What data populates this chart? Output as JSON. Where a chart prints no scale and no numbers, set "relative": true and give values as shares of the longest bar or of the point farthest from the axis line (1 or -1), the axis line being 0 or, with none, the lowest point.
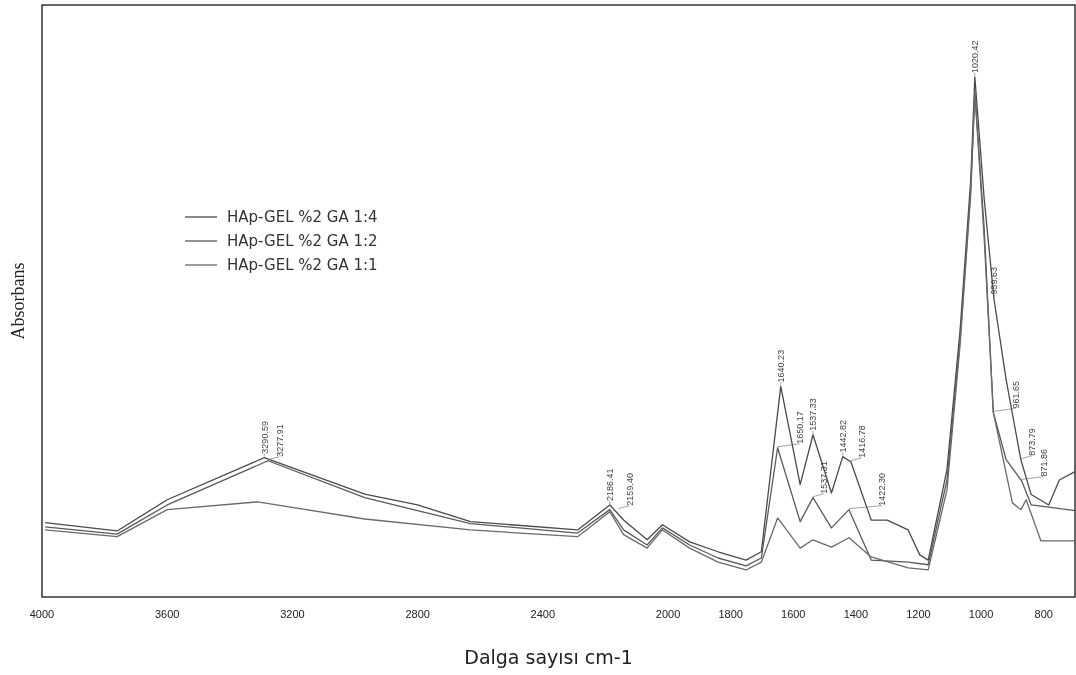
{
  "chart_data": {
    "type": "line",
    "relative": true,
    "xlabel": "Dalga sayısı cm-1",
    "ylabel": "Absorbans",
    "xlim": [
      4000,
      700
    ],
    "xticks": [
      4000,
      3600,
      3200,
      2800,
      2400,
      2000,
      1800,
      1600,
      1400,
      1200,
      1000,
      800
    ],
    "legend": "top left",
    "grid": false,
    "marker": "none",
    "line_style": "solid",
    "series": [
      {
        "name": "HAp-GEL %2 GA 1:4",
        "color": "#4a4a4a",
        "x": [
          3990,
          3760,
          3600,
          3290,
          2969,
          2800,
          2631,
          2289,
          2186,
          2142,
          2067,
          2018,
          1931,
          1840,
          1751,
          1702,
          1640,
          1578,
          1537,
          1478,
          1442,
          1416,
          1351,
          1300,
          1233,
          1196,
          1169,
          1109,
          1067,
          1033,
          1020,
          990,
          959,
          920,
          873,
          840,
          784,
          750,
          700
        ],
        "values": [
          0.143,
          0.127,
          0.187,
          0.268,
          0.198,
          0.177,
          0.145,
          0.129,
          0.177,
          0.148,
          0.11,
          0.139,
          0.106,
          0.087,
          0.071,
          0.087,
          0.405,
          0.216,
          0.312,
          0.2,
          0.27,
          0.26,
          0.148,
          0.148,
          0.129,
          0.081,
          0.071,
          0.245,
          0.514,
          0.803,
          1.0,
          0.765,
          0.574,
          0.418,
          0.264,
          0.197,
          0.177,
          0.225,
          0.241
        ]
      },
      {
        "name": "HAp-GEL %2 GA 1:2",
        "color": "#5a5a5a",
        "x": [
          3990,
          3760,
          3600,
          3278,
          2969,
          2631,
          2289,
          2186,
          2142,
          2067,
          2018,
          1931,
          1840,
          1751,
          1702,
          1650,
          1578,
          1537,
          1478,
          1422,
          1351,
          1233,
          1169,
          1109,
          1067,
          1033,
          1020,
          990,
          961,
          920,
          871,
          840,
          784,
          700
        ],
        "values": [
          0.135,
          0.121,
          0.177,
          0.262,
          0.191,
          0.141,
          0.123,
          0.168,
          0.129,
          0.1,
          0.133,
          0.1,
          0.075,
          0.06,
          0.075,
          0.287,
          0.145,
          0.191,
          0.133,
          0.168,
          0.071,
          0.067,
          0.062,
          0.225,
          0.495,
          0.784,
          0.973,
          0.707,
          0.355,
          0.264,
          0.224,
          0.177,
          0.173,
          0.166
        ]
      },
      {
        "name": "HAp-GEL %2 GA 1:1",
        "color": "#6a6a6a",
        "x": [
          3990,
          3760,
          3600,
          3311,
          2969,
          2631,
          2289,
          2186,
          2142,
          2067,
          2018,
          1931,
          1840,
          1751,
          1702,
          1650,
          1578,
          1537,
          1478,
          1422,
          1351,
          1233,
          1169,
          1109,
          1067,
          1033,
          1020,
          990,
          961,
          900,
          873,
          856,
          809,
          700
        ],
        "values": [
          0.129,
          0.116,
          0.168,
          0.183,
          0.15,
          0.129,
          0.116,
          0.164,
          0.12,
          0.094,
          0.129,
          0.094,
          0.067,
          0.052,
          0.067,
          0.152,
          0.094,
          0.11,
          0.096,
          0.114,
          0.077,
          0.056,
          0.052,
          0.206,
          0.486,
          0.775,
          0.969,
          0.688,
          0.355,
          0.181,
          0.168,
          0.187,
          0.108,
          0.108
        ]
      }
    ],
    "annotations": [
      {
        "text": "3290.59",
        "x": 3290,
        "y": 0.268
      },
      {
        "text": "3277.91",
        "x": 3278,
        "y": 0.262
      },
      {
        "text": "2186.41",
        "x": 2186,
        "y": 0.177
      },
      {
        "text": "2159.40",
        "x": 2159,
        "y": 0.168
      },
      {
        "text": "1640.23",
        "x": 1640,
        "y": 0.405
      },
      {
        "text": "1650.17",
        "x": 1650,
        "y": 0.287
      },
      {
        "text": "1537.33",
        "x": 1537,
        "y": 0.312
      },
      {
        "text": "1537.31",
        "x": 1537,
        "y": 0.191
      },
      {
        "text": "1442.82",
        "x": 1442,
        "y": 0.27
      },
      {
        "text": "1416.78",
        "x": 1416,
        "y": 0.26
      },
      {
        "text": "1422.30",
        "x": 1422,
        "y": 0.168
      },
      {
        "text": "1020.42",
        "x": 1020,
        "y": 1.0
      },
      {
        "text": "959.63",
        "x": 959,
        "y": 0.574
      },
      {
        "text": "961.65",
        "x": 961,
        "y": 0.355
      },
      {
        "text": "873.79",
        "x": 873,
        "y": 0.264
      },
      {
        "text": "871.86",
        "x": 871,
        "y": 0.224
      }
    ]
  }
}
